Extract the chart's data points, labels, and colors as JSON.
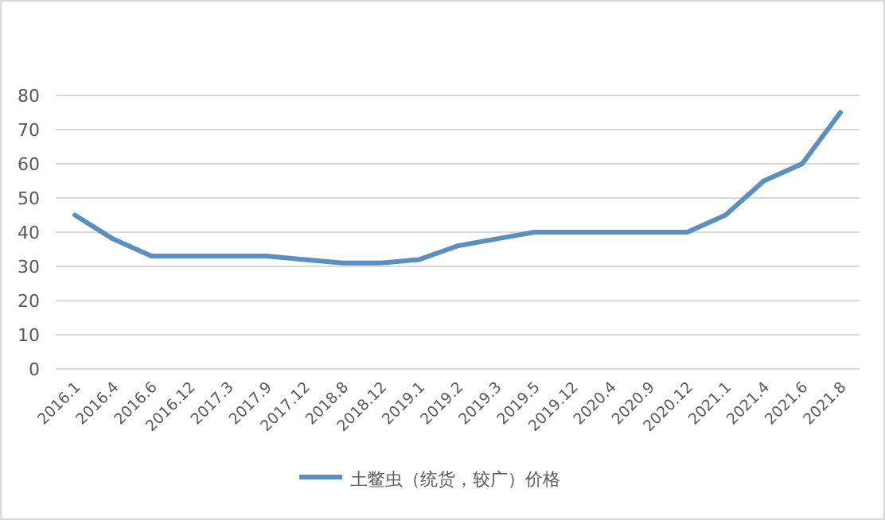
{
  "chart_data": {
    "type": "line",
    "categories": [
      "2016.1",
      "2016.4",
      "2016.6",
      "2016.12",
      "2017.3",
      "2017.9",
      "2017.12",
      "2018.8",
      "2018.12",
      "2019.1",
      "2019.2",
      "2019.3",
      "2019.5",
      "2019.12",
      "2020.4",
      "2020.9",
      "2020.12",
      "2021.1",
      "2021.4",
      "2021.6",
      "2021.8"
    ],
    "series": [
      {
        "name": "土鳖虫（统货，较广）价格",
        "color": "#5b8fc0",
        "values": [
          45,
          38,
          33,
          33,
          33,
          33,
          32,
          31,
          31,
          32,
          36,
          38,
          40,
          40,
          40,
          40,
          40,
          45,
          55,
          60,
          75
        ]
      }
    ],
    "ylim": [
      0,
      80
    ],
    "yticks": [
      0,
      10,
      20,
      30,
      40,
      50,
      60,
      70,
      80
    ],
    "grid": "y",
    "legend": "bottom",
    "marker": "none",
    "line_style": "solid"
  }
}
